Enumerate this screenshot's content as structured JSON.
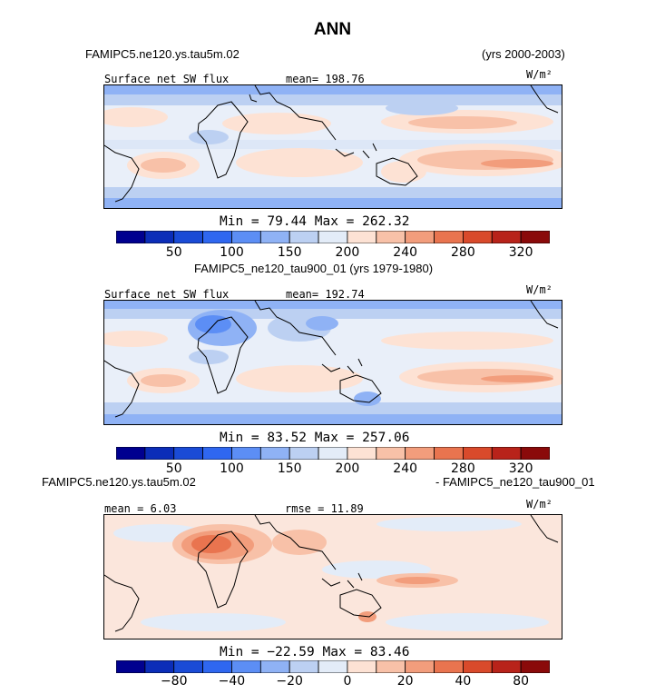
{
  "page": {
    "title": "ANN"
  },
  "panels": [
    {
      "case_title": "FAMIPC5.ne120.ys.tau5m.02",
      "years": "(yrs 2000-2003)",
      "left_label": "Surface net SW flux",
      "center_label": "mean= 198.76",
      "units": "W/m²",
      "minmax": "Min =  79.44 Max = 262.32",
      "colorbar_ticks": [
        "50",
        "100",
        "150",
        "200",
        "240",
        "280",
        "320"
      ]
    },
    {
      "case_title": "FAMIPC5_ne120_tau900_01 (yrs 1979-1980)",
      "left_label": "Surface net SW flux",
      "center_label": "mean= 192.74",
      "units": "W/m²",
      "minmax": "Min =  83.52 Max = 257.06",
      "colorbar_ticks": [
        "50",
        "100",
        "150",
        "200",
        "240",
        "280",
        "320"
      ]
    },
    {
      "case_title": "FAMIPC5.ne120.ys.tau5m.02",
      "case_title_right": "- FAMIPC5_ne120_tau900_01",
      "left_label": "mean =    6.03",
      "center_label": "rmse =   11.89",
      "units": "W/m²",
      "minmax": "Min = −22.59 Max =  83.46",
      "colorbar_ticks": [
        "−80",
        "−40",
        "−20",
        "0",
        "20",
        "40",
        "80"
      ]
    }
  ],
  "colors": {
    "colorbar": [
      "#00008f",
      "#0b2db8",
      "#1a4bd6",
      "#2f67f0",
      "#5c8ef5",
      "#8fb2f5",
      "#bcd0f2",
      "#e3ecf8",
      "#fde2d4",
      "#f8c1a8",
      "#f29d7c",
      "#e9744f",
      "#d94a2b",
      "#b8231a",
      "#8a0a0a"
    ]
  }
}
